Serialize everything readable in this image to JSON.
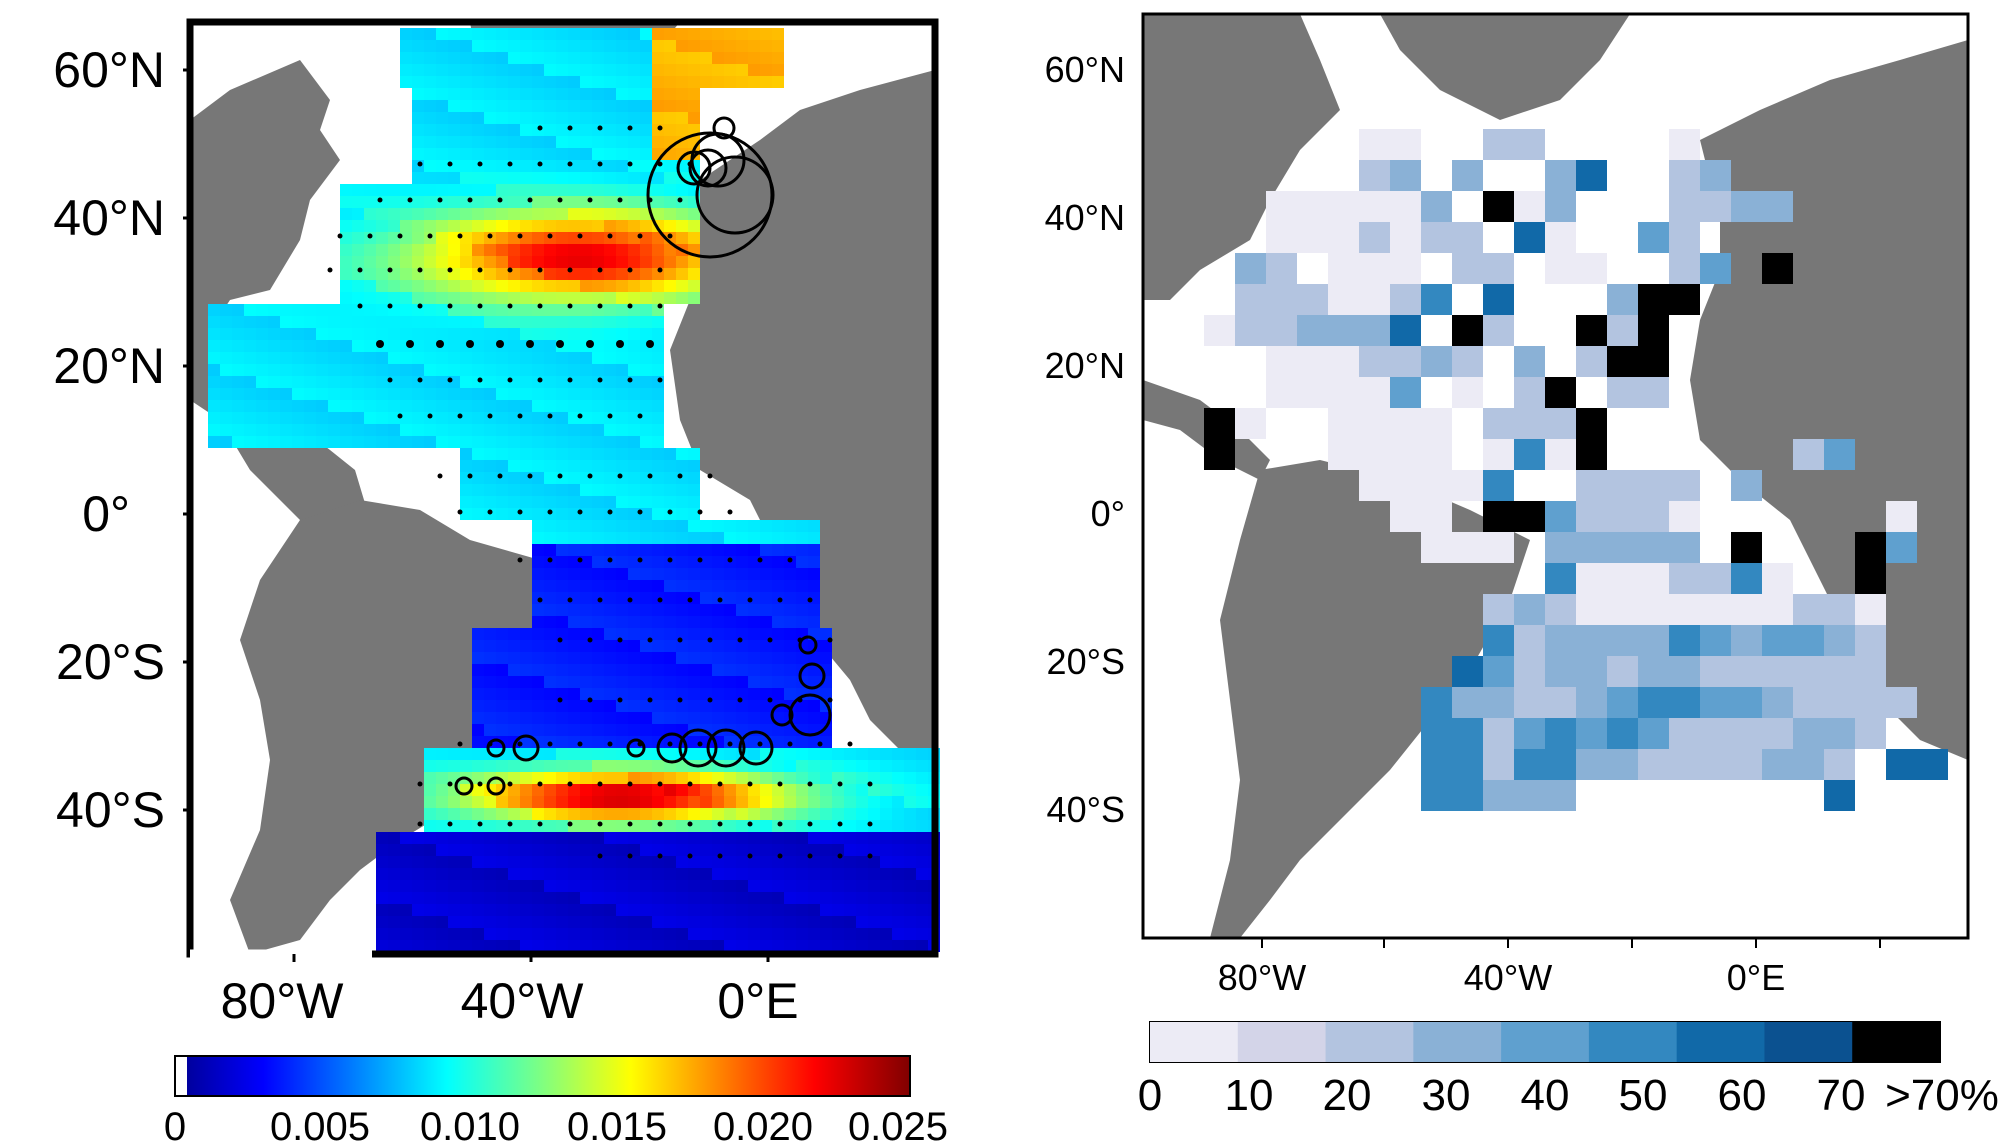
{
  "left_map": {
    "lat_labels": [
      "60°N",
      "40°N",
      "20°N",
      "0°",
      "20°S",
      "40°S"
    ],
    "lon_labels": [
      "80°W",
      "40°W",
      "0°E"
    ],
    "colorbar": {
      "ticks": [
        "0",
        "0.005",
        "0.010",
        "0.015",
        "0.020",
        "0.025"
      ],
      "min": 0,
      "max": 0.025,
      "colormap": "jet"
    }
  },
  "right_map": {
    "lat_labels": [
      "60°N",
      "40°N",
      "20°N",
      "0°",
      "20°S",
      "40°S"
    ],
    "lon_labels": [
      "80°W",
      "40°W",
      "0°E"
    ],
    "colorbar": {
      "ticks": [
        "0",
        "10",
        "20",
        "30",
        "40",
        "50",
        "60",
        "70",
        ">70%"
      ],
      "bins": [
        "#ecebf5",
        "#d3d4e8",
        "#b3c4e0",
        "#8ab1d6",
        "#5fa0cf",
        "#3388c0",
        "#1169a8",
        "#0b5190",
        "#000000"
      ]
    }
  },
  "colors": {
    "land": "#777777",
    "frame": "#000000"
  }
}
